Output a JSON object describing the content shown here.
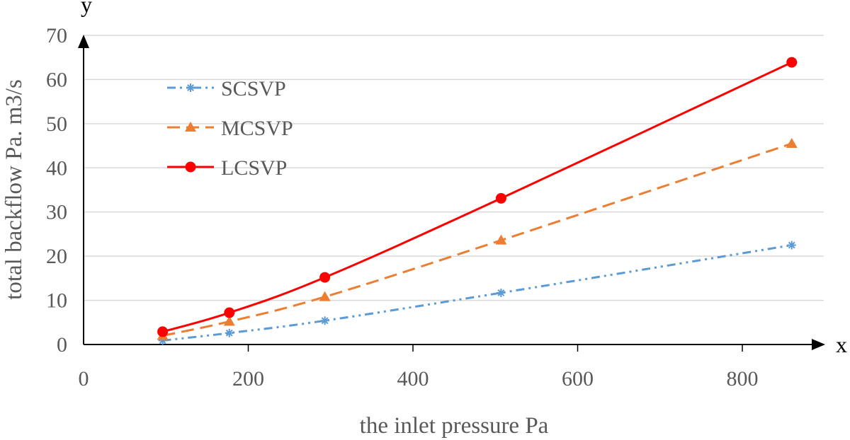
{
  "chart_data": {
    "type": "line",
    "title": "",
    "xlabel": "the inlet pressure  Pa",
    "ylabel": "total backflow  Pa. m3/s",
    "x_axis_letter": "x",
    "y_axis_letter": "y",
    "xlim": [
      0,
      900
    ],
    "ylim": [
      0,
      70
    ],
    "x_ticks": [
      0,
      200,
      400,
      600,
      800
    ],
    "y_ticks": [
      0,
      10,
      20,
      30,
      40,
      50,
      60,
      70
    ],
    "grid": true,
    "legend_position": "top-left",
    "x": [
      96,
      177,
      293,
      507,
      860
    ],
    "series": [
      {
        "name": "SCSVP",
        "values": [
          0.9,
          2.6,
          5.4,
          11.7,
          22.5
        ],
        "color": "#5B9BD5",
        "marker": "asterisk",
        "dash": "dash-dot-dot"
      },
      {
        "name": "MCSVP",
        "values": [
          2.0,
          5.2,
          10.8,
          23.6,
          45.5
        ],
        "color": "#ED7D31",
        "marker": "triangle",
        "dash": "dash"
      },
      {
        "name": "LCSVP",
        "values": [
          2.9,
          7.2,
          15.2,
          33.1,
          63.9
        ],
        "color": "#FF0000",
        "marker": "circle",
        "dash": "solid"
      }
    ]
  }
}
